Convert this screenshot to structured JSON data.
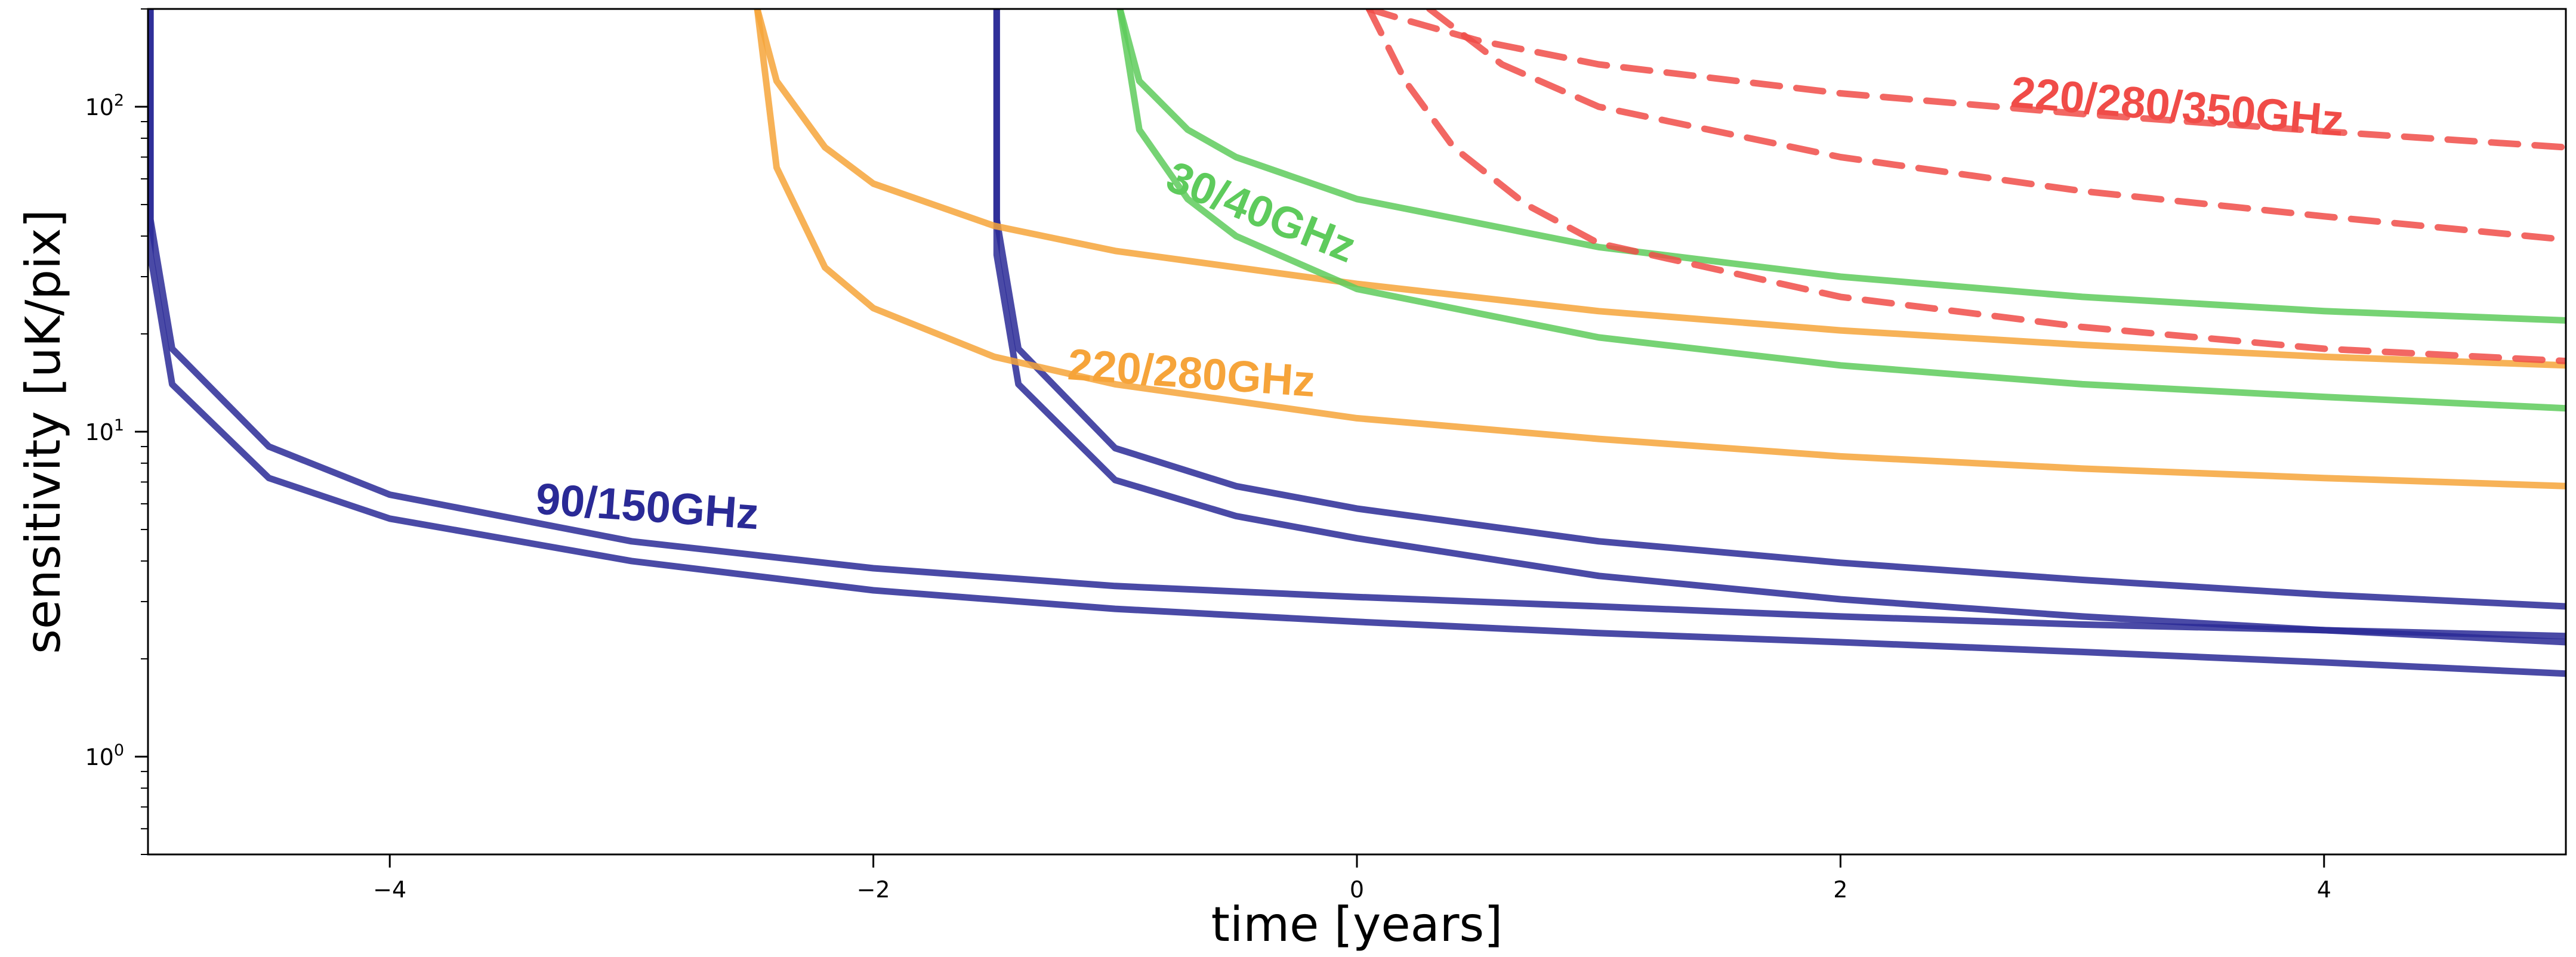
{
  "chart_data": {
    "type": "line",
    "xlabel": "time [years]",
    "ylabel": "sensitivity [uK/pix]",
    "xlim": [
      -5,
      5
    ],
    "ylim": [
      0.5,
      200
    ],
    "yscale": "log",
    "grid": false,
    "x_ticks": [
      {
        "value": -4,
        "label": "−4"
      },
      {
        "value": -2,
        "label": "−2"
      },
      {
        "value": 0,
        "label": "0"
      },
      {
        "value": 2,
        "label": "2"
      },
      {
        "value": 4,
        "label": "4"
      }
    ],
    "y_ticks": [
      {
        "value": 1,
        "base": "10",
        "exp": "0"
      },
      {
        "value": 10,
        "base": "10",
        "exp": "1"
      },
      {
        "value": 100,
        "base": "10",
        "exp": "2"
      }
    ],
    "groups": [
      {
        "label": "90/150GHz",
        "color": "#2a2a96",
        "dashed": false,
        "label_pos": {
          "x": -3.4,
          "y": 5.6
        },
        "label_rotation": 4,
        "series": [
          {
            "x": [
              -4.99,
              -4.9,
              -4.5,
              -4.0,
              -3.0,
              -2.0,
              -1.0,
              0,
              1,
              2,
              3,
              4,
              5
            ],
            "y": [
              45,
              18,
              9.0,
              6.4,
              4.6,
              3.8,
              3.35,
              3.1,
              2.9,
              2.7,
              2.55,
              2.45,
              2.35
            ]
          },
          {
            "x": [
              -4.99,
              -4.9,
              -4.5,
              -4.0,
              -3.0,
              -2.0,
              -1.0,
              0,
              1,
              2,
              3,
              4,
              5
            ],
            "y": [
              35,
              14,
              7.2,
              5.4,
              4.0,
              3.25,
              2.85,
              2.6,
              2.4,
              2.25,
              2.1,
              1.95,
              1.8
            ]
          },
          {
            "x": [
              -1.49,
              -1.4,
              -1.0,
              -0.5,
              0,
              1,
              2,
              3,
              4,
              5
            ],
            "y": [
              45,
              18,
              8.9,
              6.8,
              5.8,
              4.6,
              3.95,
              3.5,
              3.15,
              2.9
            ]
          },
          {
            "x": [
              -1.49,
              -1.4,
              -1.0,
              -0.5,
              0,
              1,
              2,
              3,
              4,
              5
            ],
            "y": [
              35,
              14,
              7.1,
              5.5,
              4.7,
              3.6,
              3.05,
              2.7,
              2.45,
              2.25
            ]
          }
        ]
      },
      {
        "label": "220/280GHz",
        "color": "#f6a43a",
        "dashed": false,
        "label_pos": {
          "x": -1.2,
          "y": 14.5
        },
        "label_rotation": 4,
        "series": [
          {
            "x": [
              -2.48,
              -2.4,
              -2.2,
              -2.0,
              -1.5,
              -1.0,
              0,
              1,
              2,
              3,
              4,
              5
            ],
            "y": [
              200,
              120,
              75,
              58,
              43,
              36,
              28.5,
              23.5,
              20.5,
              18.5,
              17.0,
              16.0
            ]
          },
          {
            "x": [
              -2.48,
              -2.4,
              -2.2,
              -2.0,
              -1.5,
              -1.0,
              0,
              1,
              2,
              3,
              4,
              5
            ],
            "y": [
              200,
              65,
              32,
              24,
              17.0,
              14.0,
              11.0,
              9.5,
              8.4,
              7.7,
              7.2,
              6.8
            ]
          }
        ]
      },
      {
        "label": "30/40GHz",
        "color": "#5ecb5c",
        "dashed": false,
        "label_pos": {
          "x": -0.8,
          "y": 56
        },
        "label_rotation": 22,
        "series": [
          {
            "x": [
              -0.98,
              -0.9,
              -0.7,
              -0.5,
              0,
              1,
              2,
              3,
              4,
              5
            ],
            "y": [
              200,
              120,
              85,
              70,
              52,
              37,
              30,
              26,
              23.5,
              22
            ]
          },
          {
            "x": [
              -0.98,
              -0.9,
              -0.7,
              -0.5,
              0,
              1,
              2,
              3,
              4,
              5
            ],
            "y": [
              200,
              85,
              52,
              40,
              27.5,
              19.5,
              16.0,
              14.0,
              12.8,
              11.8
            ]
          }
        ]
      },
      {
        "label": "220/280/350GHz",
        "color": "#f04c48",
        "dashed": true,
        "label_pos": {
          "x": 2.7,
          "y": 100
        },
        "label_rotation": 5,
        "series": [
          {
            "x": [
              0.05,
              0.2,
              0.5,
              1,
              2,
              3,
              4,
              5
            ],
            "y": [
              200,
              185,
              160,
              135,
              110,
              95,
              84,
              75
            ]
          },
          {
            "x": [
              0.3,
              0.6,
              1,
              2,
              3,
              4,
              5
            ],
            "y": [
              200,
              135,
              100,
              70,
              55,
              46,
              39
            ]
          },
          {
            "x": [
              0.05,
              0.2,
              0.4,
              0.7,
              1,
              2,
              3,
              4,
              5
            ],
            "y": [
              200,
              120,
              75,
              50,
              38,
              26,
              21,
              18,
              16.5
            ]
          }
        ]
      }
    ]
  }
}
